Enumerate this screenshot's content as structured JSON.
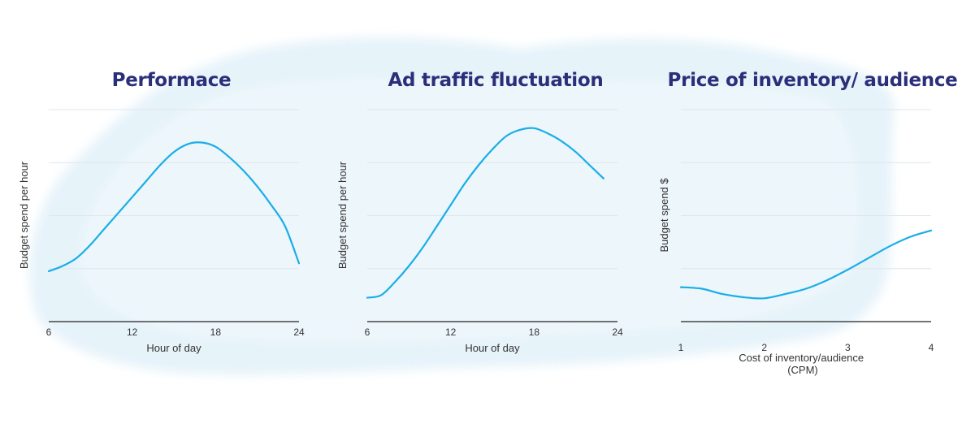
{
  "chart_data": [
    {
      "type": "line",
      "title": "Performace",
      "xlabel": "Hour of day",
      "ylabel": "Budget spend per hour",
      "x_ticks": [
        6,
        12,
        18,
        24
      ],
      "xlim": [
        6,
        24
      ],
      "ylim": [
        0,
        4
      ],
      "grid": true,
      "color": "#19aee8",
      "series": [
        {
          "x": [
            6,
            7,
            8,
            9,
            10,
            11,
            12,
            13,
            14,
            15,
            16,
            17,
            18,
            19,
            20,
            21,
            22,
            23,
            24
          ],
          "y": [
            0.95,
            1.05,
            1.2,
            1.45,
            1.75,
            2.05,
            2.35,
            2.65,
            2.95,
            3.2,
            3.35,
            3.38,
            3.3,
            3.1,
            2.85,
            2.55,
            2.2,
            1.8,
            1.1
          ]
        }
      ]
    },
    {
      "type": "line",
      "title": "Ad traffic fluctuation",
      "xlabel": "Hour of day",
      "ylabel": "Budget spend per hour",
      "x_ticks": [
        6,
        12,
        18,
        24
      ],
      "xlim": [
        6,
        24
      ],
      "ylim": [
        0,
        4
      ],
      "grid": true,
      "color": "#19aee8",
      "series": [
        {
          "x": [
            6,
            7,
            8,
            9,
            10,
            11,
            12,
            13,
            14,
            15,
            16,
            17,
            18,
            19,
            20,
            21,
            22,
            23
          ],
          "y": [
            0.45,
            0.5,
            0.75,
            1.05,
            1.4,
            1.8,
            2.2,
            2.6,
            2.95,
            3.25,
            3.5,
            3.62,
            3.65,
            3.55,
            3.4,
            3.2,
            2.95,
            2.7
          ]
        }
      ]
    },
    {
      "type": "line",
      "title": "Price of inventory/ audience",
      "xlabel": "Cost of inventory/audience\n(CPM)",
      "ylabel": "Budget spend $",
      "x_ticks": [
        1,
        2,
        3,
        4
      ],
      "xlim": [
        1,
        4
      ],
      "ylim": [
        0,
        4
      ],
      "grid": true,
      "color": "#19aee8",
      "series": [
        {
          "x": [
            1,
            1.25,
            1.5,
            1.75,
            2,
            2.25,
            2.5,
            2.75,
            3,
            3.25,
            3.5,
            3.75,
            4
          ],
          "y": [
            0.65,
            0.62,
            0.52,
            0.46,
            0.44,
            0.52,
            0.62,
            0.78,
            0.98,
            1.2,
            1.42,
            1.6,
            1.72
          ]
        }
      ]
    }
  ]
}
